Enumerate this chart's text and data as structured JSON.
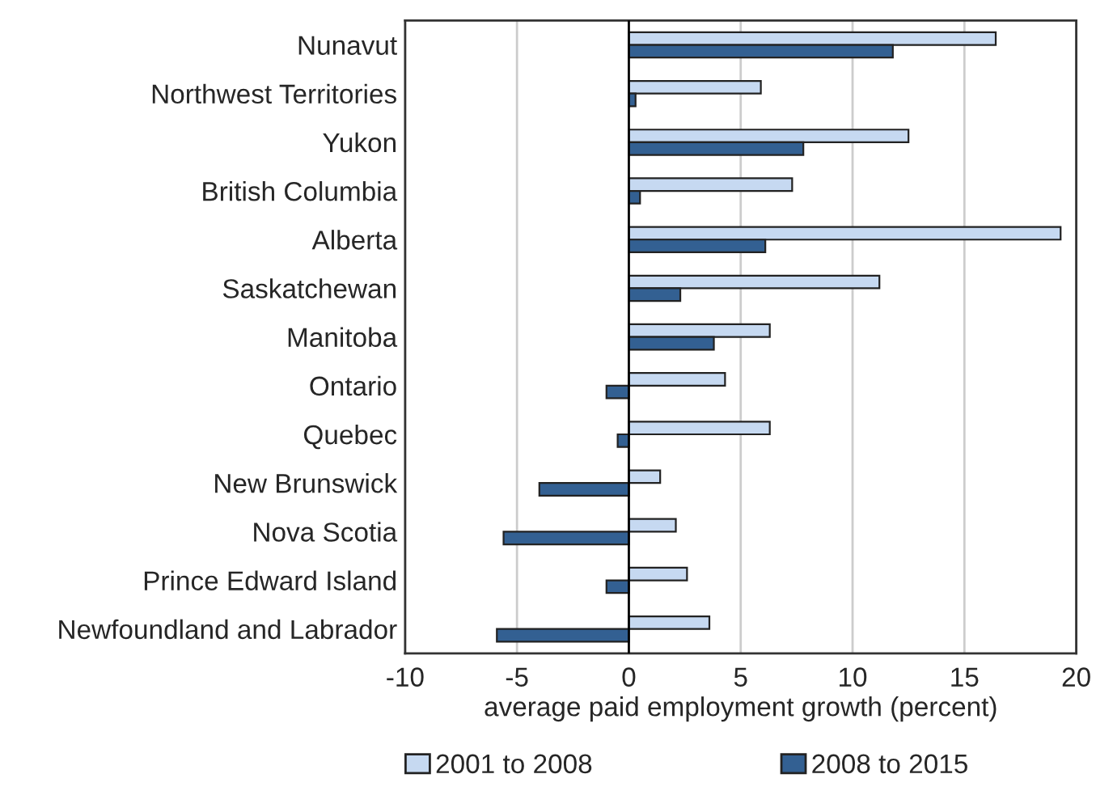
{
  "chart_data": {
    "type": "bar",
    "orientation": "horizontal",
    "categories": [
      "Nunavut",
      "Northwest Territories",
      "Yukon",
      "British Columbia",
      "Alberta",
      "Saskatchewan",
      "Manitoba",
      "Ontario",
      "Quebec",
      "New Brunswick",
      "Nova Scotia",
      "Prince Edward Island",
      "Newfoundland and Labrador"
    ],
    "series": [
      {
        "name": "2001 to 2008",
        "color": "#c6d9f1",
        "values": [
          16.4,
          5.9,
          12.5,
          7.3,
          19.3,
          11.2,
          6.3,
          4.3,
          6.3,
          1.4,
          2.1,
          2.6,
          3.6
        ]
      },
      {
        "name": "2008 to 2015",
        "color": "#336092",
        "values": [
          11.8,
          0.3,
          7.8,
          0.5,
          6.1,
          2.3,
          3.8,
          -1.0,
          -0.5,
          -4.0,
          -5.6,
          -1.0,
          -5.9
        ]
      }
    ],
    "xlabel": "average paid employment growth (percent)",
    "xlim": [
      -10,
      20
    ],
    "xticks": [
      -10,
      -5,
      0,
      5,
      10,
      15,
      20
    ],
    "grid": "x",
    "legend": "bottom"
  }
}
